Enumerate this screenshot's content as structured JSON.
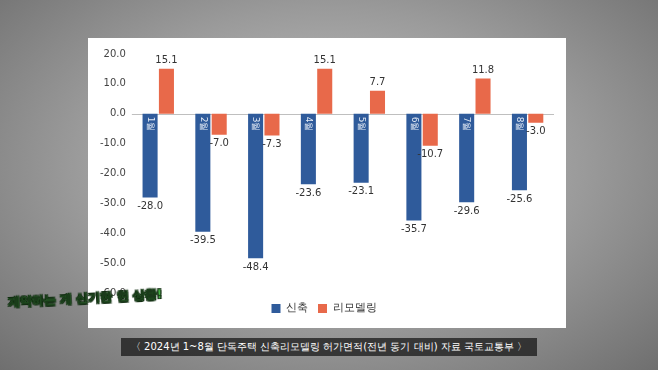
{
  "chart_data": {
    "type": "bar",
    "categories": [
      "1월",
      "2월",
      "3월",
      "4월",
      "5월",
      "6월",
      "7월",
      "8월"
    ],
    "series": [
      {
        "name": "신축",
        "color": "#2f5b9b",
        "values": [
          -28.0,
          -39.5,
          -48.4,
          -23.6,
          -23.1,
          -35.7,
          -29.6,
          -25.6
        ],
        "value_labels": [
          "-28.0",
          "-39.5",
          "-48.4",
          "-23.6",
          "-23.1",
          "-35.7",
          "-29.6",
          "-25.6"
        ]
      },
      {
        "name": "리모델링",
        "color": "#e8694a",
        "values": [
          15.1,
          -7.0,
          -7.3,
          15.1,
          7.7,
          -10.7,
          11.8,
          -3.0
        ],
        "value_labels": [
          "15.1",
          "-7.0",
          "-7.3",
          "15.1",
          "7.7",
          "-10.7",
          "11.8",
          "-3.0"
        ]
      }
    ],
    "ylim": [
      -60,
      20
    ],
    "yticks": [
      {
        "value": -60,
        "label": "-60.0"
      },
      {
        "value": -50,
        "label": "-50.0"
      },
      {
        "value": -40,
        "label": "-40.0"
      },
      {
        "value": -30,
        "label": "-30.0"
      },
      {
        "value": -20,
        "label": "-20.0"
      },
      {
        "value": -10,
        "label": "-10.0"
      },
      {
        "value": 0,
        "label": "0.0"
      },
      {
        "value": 10,
        "label": "10.0"
      },
      {
        "value": 20,
        "label": "20.0"
      }
    ],
    "grid": false,
    "legend": "bottom",
    "data_labels": true,
    "annotations": [
      "계약하는 게 신기한 현 상황!",
      "〈 2024년 1~8월 단독주택 신축리모델링 허가면적(전년 동기 대비)  자료  국토교통부 〉"
    ]
  }
}
